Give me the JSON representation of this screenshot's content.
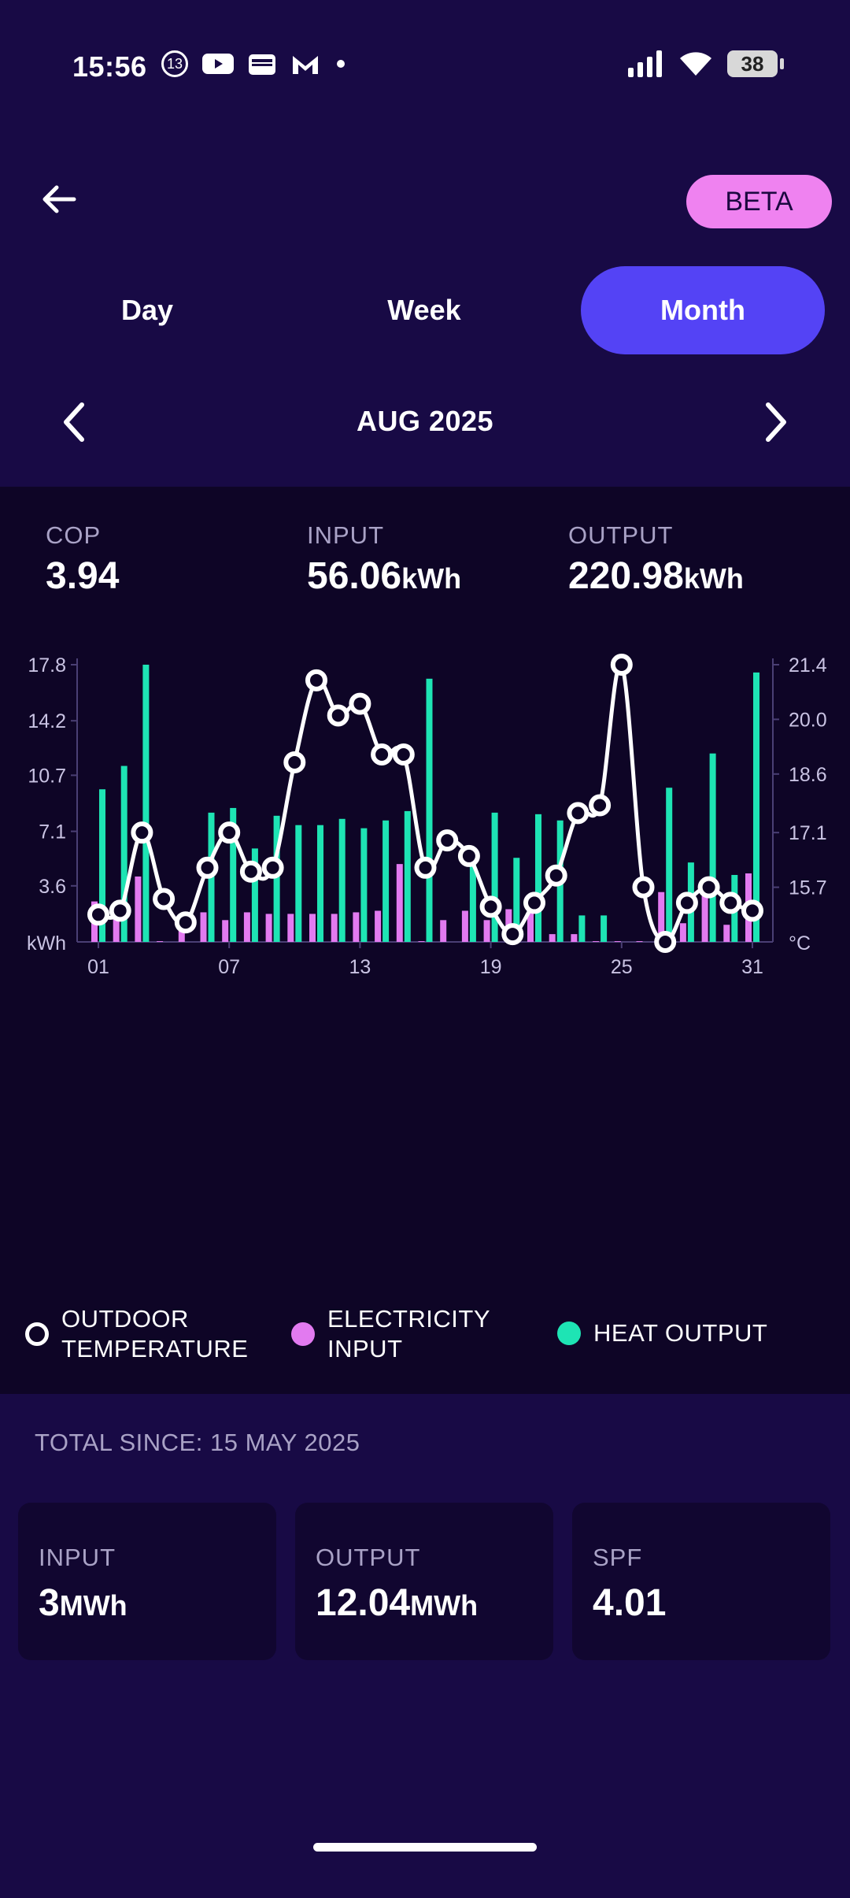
{
  "status_bar": {
    "time": "15:56",
    "notification_badge": "13",
    "battery": "38",
    "icons": [
      "badge-icon",
      "youtube-icon",
      "wallet-icon",
      "mail-m-icon",
      "dot-icon",
      "signal-icon",
      "wifi-icon",
      "battery-icon"
    ]
  },
  "header": {
    "back_icon": "arrow-left-icon",
    "beta_label": "BETA"
  },
  "tabs": [
    {
      "label": "Day",
      "active": false
    },
    {
      "label": "Week",
      "active": false
    },
    {
      "label": "Month",
      "active": true
    }
  ],
  "period": {
    "label": "AUG 2025",
    "prev_icon": "chevron-left-icon",
    "next_icon": "chevron-right-icon"
  },
  "summary": {
    "cop": {
      "label": "COP",
      "value": "3.94"
    },
    "input": {
      "label": "INPUT",
      "value": "56.06",
      "unit": "kWh"
    },
    "output": {
      "label": "OUTPUT",
      "value": "220.98",
      "unit": "kWh"
    }
  },
  "chart_data": {
    "type": "bar",
    "categories": [
      "01",
      "02",
      "03",
      "04",
      "05",
      "06",
      "07",
      "08",
      "09",
      "10",
      "11",
      "12",
      "13",
      "14",
      "15",
      "16",
      "17",
      "18",
      "19",
      "20",
      "21",
      "22",
      "23",
      "24",
      "25",
      "26",
      "27",
      "28",
      "29",
      "30",
      "31"
    ],
    "x_tick_labels": [
      "01",
      "07",
      "13",
      "19",
      "25",
      "31"
    ],
    "y_left": {
      "unit": "kWh",
      "ticks": [
        "17.8",
        "14.2",
        "10.7",
        "7.1",
        "3.6"
      ],
      "range": [
        0,
        17.8
      ]
    },
    "y_right": {
      "unit": "°C",
      "ticks": [
        "21.4",
        "20.0",
        "18.6",
        "17.1",
        "15.7"
      ],
      "range": [
        14.3,
        21.4
      ]
    },
    "series": [
      {
        "name": "HEAT OUTPUT",
        "color": "#1ee4b4",
        "axis": "left",
        "values": [
          9.8,
          11.3,
          17.8,
          0,
          0,
          8.3,
          8.6,
          6.0,
          8.1,
          7.5,
          7.5,
          7.9,
          7.3,
          7.8,
          8.4,
          16.9,
          0,
          6.0,
          8.3,
          5.4,
          8.2,
          7.8,
          1.7,
          1.7,
          0,
          0,
          9.9,
          5.1,
          12.1,
          4.3,
          17.3
        ]
      },
      {
        "name": "ELECTRICITY INPUT",
        "color": "#e27af0",
        "axis": "left",
        "values": [
          2.6,
          2.3,
          4.2,
          0.05,
          1.8,
          1.9,
          1.4,
          1.9,
          1.8,
          1.8,
          1.8,
          1.8,
          1.9,
          2.0,
          5.0,
          0.05,
          1.4,
          2.0,
          1.4,
          2.1,
          2.0,
          0.5,
          0.5,
          0.05,
          0.05,
          0.05,
          3.2,
          1.2,
          3.4,
          1.1,
          4.4
        ]
      },
      {
        "name": "OUTDOOR TEMPERATURE",
        "color": "#ffffff",
        "axis": "right",
        "values": [
          15.0,
          15.1,
          17.1,
          15.4,
          14.8,
          16.2,
          17.1,
          16.1,
          16.2,
          18.9,
          21.0,
          20.1,
          20.4,
          19.1,
          19.1,
          16.2,
          16.9,
          16.5,
          15.2,
          14.5,
          15.3,
          16.0,
          17.6,
          17.8,
          21.4,
          15.7,
          14.3,
          15.3,
          15.7,
          15.3,
          15.1
        ]
      }
    ],
    "legend": [
      {
        "label": "OUTDOOR\nTEMPERATURE",
        "color": "#ffffff",
        "style": "ring"
      },
      {
        "label": "ELECTRICITY\nINPUT",
        "color": "#e27af0",
        "style": "dot"
      },
      {
        "label": "HEAT OUTPUT",
        "color": "#1ee4b4",
        "style": "dot"
      }
    ],
    "grid": false
  },
  "totals": {
    "label": "TOTAL SINCE: 15 MAY 2025",
    "input": {
      "label": "INPUT",
      "value": "3",
      "unit": "MWh"
    },
    "output": {
      "label": "OUTPUT",
      "value": "12.04",
      "unit": "MWh"
    },
    "spf": {
      "label": "SPF",
      "value": "4.01"
    }
  }
}
